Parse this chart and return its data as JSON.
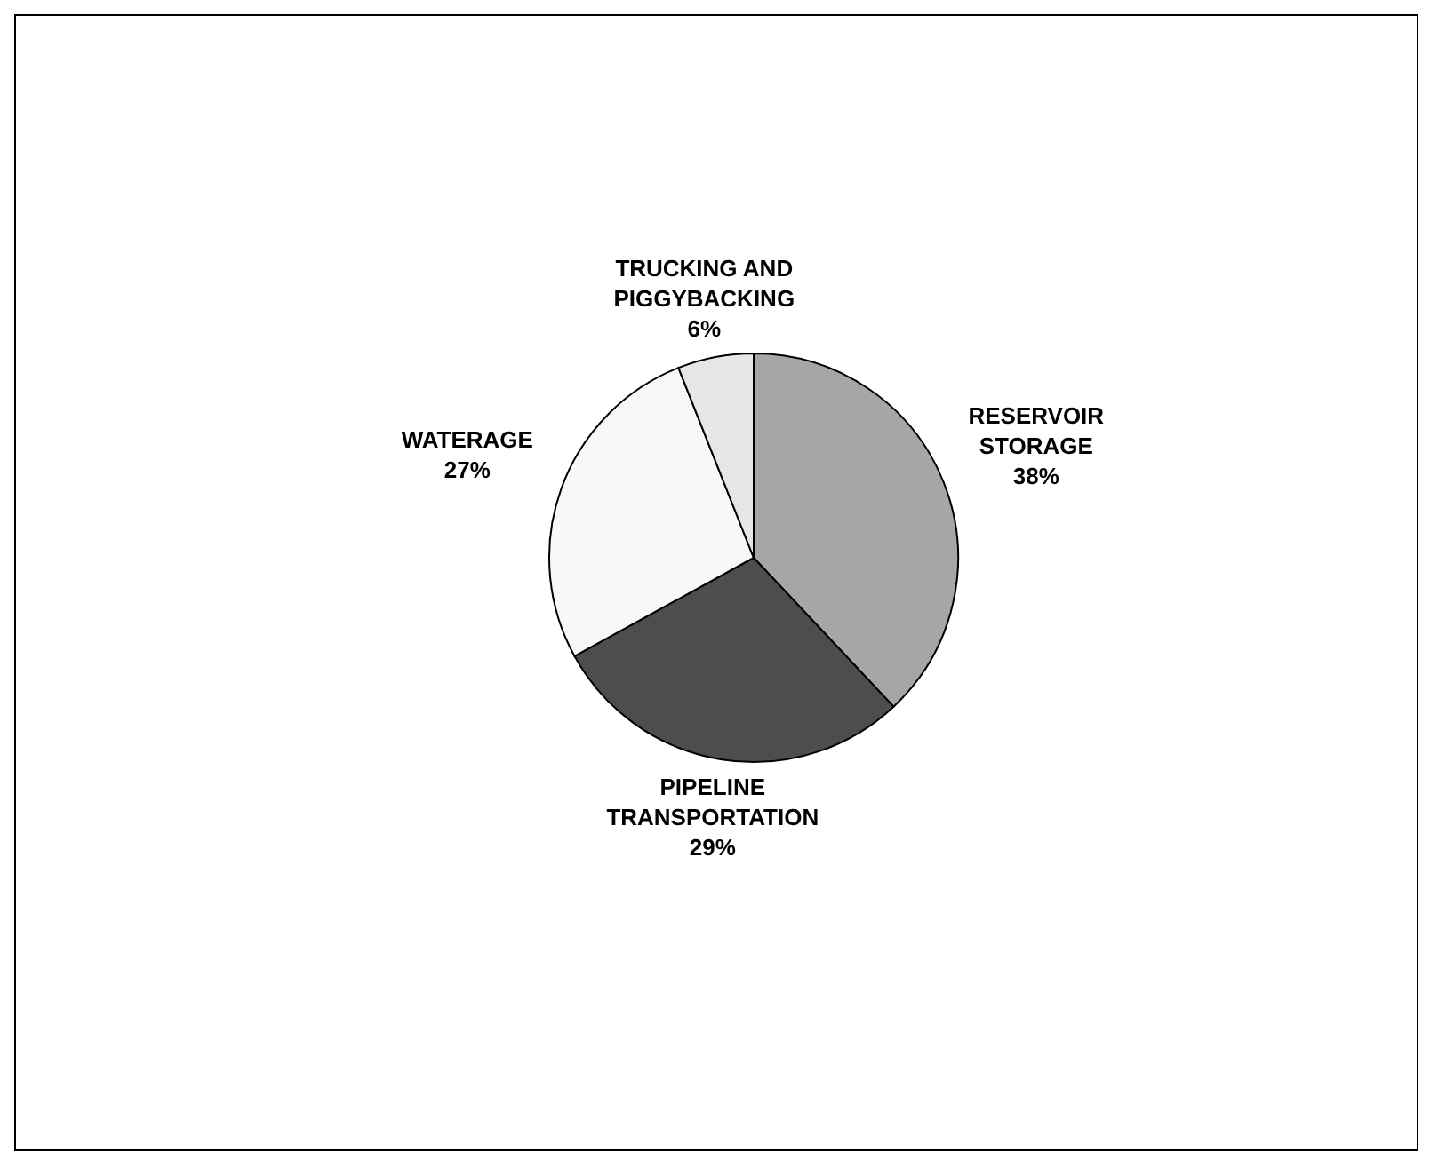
{
  "chart_data": {
    "type": "pie",
    "categories": [
      "RESERVOIR STORAGE",
      "PIPELINE TRANSPORTATION",
      "WATERAGE",
      "TRUCKING AND PIGGYBACKING"
    ],
    "values": [
      38,
      29,
      27,
      6
    ],
    "colors": [
      "#a6a6a6",
      "#4d4d4d",
      "#f8f8f8",
      "#e6e6e6"
    ],
    "value_labels": [
      "38%",
      "29%",
      "27%",
      "6%"
    ],
    "legend": false
  }
}
